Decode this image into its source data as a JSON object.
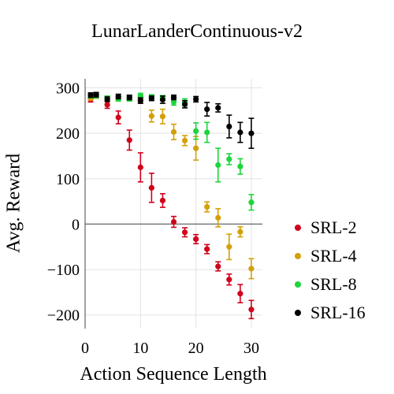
{
  "chart_data": {
    "type": "scatter",
    "title": "LunarLanderContinuous-v2",
    "xlabel": "Action Sequence Length",
    "ylabel": "Avg. Reward",
    "xlim": [
      0,
      32
    ],
    "ylim": [
      -230,
      320
    ],
    "xticks": [
      0,
      10,
      20,
      30
    ],
    "yticks": [
      -200,
      -100,
      0,
      100,
      200,
      300
    ],
    "ytick_labels": [
      "−200",
      "−100",
      "0",
      "100",
      "200",
      "300"
    ],
    "grid": true,
    "legend_position": "right",
    "series": [
      {
        "name": "SRL-2",
        "color": "#d0021b",
        "points": [
          {
            "x": 1,
            "y": 275,
            "err": 6
          },
          {
            "x": 2,
            "y": 283,
            "err": 5
          },
          {
            "x": 4,
            "y": 263,
            "err": 8
          },
          {
            "x": 6,
            "y": 235,
            "err": 14
          },
          {
            "x": 8,
            "y": 185,
            "err": 22
          },
          {
            "x": 10,
            "y": 125,
            "err": 32
          },
          {
            "x": 12,
            "y": 80,
            "err": 32
          },
          {
            "x": 14,
            "y": 52,
            "err": 15
          },
          {
            "x": 16,
            "y": 5,
            "err": 12
          },
          {
            "x": 18,
            "y": -18,
            "err": 10
          },
          {
            "x": 20,
            "y": -33,
            "err": 10
          },
          {
            "x": 22,
            "y": -55,
            "err": 10
          },
          {
            "x": 24,
            "y": -93,
            "err": 10
          },
          {
            "x": 26,
            "y": -122,
            "err": 12
          },
          {
            "x": 28,
            "y": -153,
            "err": 20
          },
          {
            "x": 30,
            "y": -188,
            "err": 20
          }
        ]
      },
      {
        "name": "SRL-4",
        "color": "#d4a00a",
        "points": [
          {
            "x": 1,
            "y": 278,
            "err": 5
          },
          {
            "x": 2,
            "y": 282,
            "err": 5
          },
          {
            "x": 4,
            "y": 276,
            "err": 6
          },
          {
            "x": 6,
            "y": 280,
            "err": 5
          },
          {
            "x": 8,
            "y": 278,
            "err": 5
          },
          {
            "x": 10,
            "y": 275,
            "err": 6
          },
          {
            "x": 12,
            "y": 238,
            "err": 13
          },
          {
            "x": 14,
            "y": 237,
            "err": 16
          },
          {
            "x": 16,
            "y": 203,
            "err": 17
          },
          {
            "x": 18,
            "y": 184,
            "err": 11
          },
          {
            "x": 20,
            "y": 167,
            "err": 26
          },
          {
            "x": 22,
            "y": 38,
            "err": 11
          },
          {
            "x": 24,
            "y": 14,
            "err": 20
          },
          {
            "x": 26,
            "y": -50,
            "err": 28
          },
          {
            "x": 28,
            "y": -17,
            "err": 11
          },
          {
            "x": 30,
            "y": -98,
            "err": 22
          }
        ]
      },
      {
        "name": "SRL-8",
        "color": "#1cd63a",
        "points": [
          {
            "x": 1,
            "y": 283,
            "err": 5
          },
          {
            "x": 2,
            "y": 283,
            "err": 5
          },
          {
            "x": 4,
            "y": 277,
            "err": 5
          },
          {
            "x": 6,
            "y": 276,
            "err": 5
          },
          {
            "x": 8,
            "y": 276,
            "err": 5
          },
          {
            "x": 10,
            "y": 283,
            "err": 5
          },
          {
            "x": 12,
            "y": 280,
            "err": 5
          },
          {
            "x": 14,
            "y": 278,
            "err": 5
          },
          {
            "x": 16,
            "y": 269,
            "err": 7
          },
          {
            "x": 18,
            "y": 268,
            "err": 8
          },
          {
            "x": 20,
            "y": 205,
            "err": 18
          },
          {
            "x": 22,
            "y": 202,
            "err": 22
          },
          {
            "x": 24,
            "y": 130,
            "err": 37
          },
          {
            "x": 26,
            "y": 143,
            "err": 12
          },
          {
            "x": 28,
            "y": 127,
            "err": 17
          },
          {
            "x": 30,
            "y": 48,
            "err": 17
          }
        ]
      },
      {
        "name": "SRL-16",
        "color": "#000000",
        "points": [
          {
            "x": 1,
            "y": 284,
            "err": 5
          },
          {
            "x": 2,
            "y": 285,
            "err": 5
          },
          {
            "x": 4,
            "y": 275,
            "err": 5
          },
          {
            "x": 6,
            "y": 281,
            "err": 5
          },
          {
            "x": 8,
            "y": 279,
            "err": 5
          },
          {
            "x": 10,
            "y": 272,
            "err": 6
          },
          {
            "x": 12,
            "y": 277,
            "err": 5
          },
          {
            "x": 14,
            "y": 274,
            "err": 8
          },
          {
            "x": 16,
            "y": 279,
            "err": 5
          },
          {
            "x": 18,
            "y": 264,
            "err": 8
          },
          {
            "x": 20,
            "y": 275,
            "err": 6
          },
          {
            "x": 22,
            "y": 253,
            "err": 15
          },
          {
            "x": 24,
            "y": 256,
            "err": 9
          },
          {
            "x": 26,
            "y": 215,
            "err": 25
          },
          {
            "x": 28,
            "y": 202,
            "err": 22
          },
          {
            "x": 30,
            "y": 200,
            "err": 33
          }
        ]
      }
    ]
  }
}
